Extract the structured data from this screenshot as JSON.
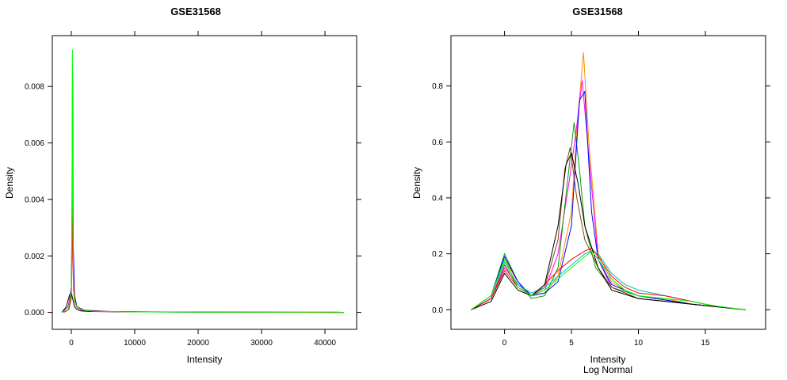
{
  "colors": [
    "#ff0000",
    "#00a000",
    "#0000ff",
    "#ff00ff",
    "#00c0c0",
    "#ff8c00",
    "#8b4513",
    "#000000",
    "#00ff00",
    "#a020f0",
    "#228b22",
    "#4682b4",
    "#ff1493",
    "#daa520",
    "#1e90ff"
  ],
  "chart_data": [
    {
      "type": "line",
      "title": "GSE31568",
      "xlabel": "Intensity",
      "ylabel": "Density",
      "subtitle": "",
      "xlim": [
        -3000,
        45000
      ],
      "ylim": [
        -0.0006,
        0.0098
      ],
      "xticks": [
        0,
        10000,
        20000,
        30000,
        40000
      ],
      "xtick_labels": [
        "0",
        "10000",
        "20000",
        "30000",
        "40000"
      ],
      "yticks": [
        0,
        0.002,
        0.004,
        0.006,
        0.008
      ],
      "ytick_labels": [
        "0.000",
        "0.002",
        "0.004",
        "0.006",
        "0.008"
      ],
      "grid": false,
      "series": [
        {
          "color": "#ff00ff",
          "x": [
            -1500,
            -500,
            0,
            100,
            180,
            250,
            350,
            500,
            800,
            1500,
            3000,
            8000,
            20000,
            30000,
            42000,
            43000
          ],
          "y": [
            0,
            0.0002,
            0.0009,
            0.004,
            0.0088,
            0.0035,
            0.0009,
            0.0004,
            0.0002,
            8e-05,
            4e-05,
            2e-05,
            1e-05,
            1e-05,
            1e-05,
            0
          ]
        },
        {
          "color": "#000000",
          "x": [
            -1500,
            -800,
            -300,
            0,
            200,
            500,
            900,
            1500,
            3000,
            8000,
            20000,
            43000
          ],
          "y": [
            0,
            0.0002,
            0.0006,
            0.0007,
            0.0005,
            0.0002,
            0.0001,
            5e-05,
            3e-05,
            2e-05,
            1e-05,
            0
          ]
        },
        {
          "color": "#0000ff",
          "x": [
            -1200,
            -400,
            0,
            120,
            200,
            300,
            500,
            900,
            2000,
            6000,
            20000,
            43000
          ],
          "y": [
            0,
            0.0001,
            0.0008,
            0.003,
            0.0085,
            0.0025,
            0.0006,
            0.0002,
            8e-05,
            3e-05,
            1e-05,
            0
          ]
        },
        {
          "color": "#ff0000",
          "x": [
            -1200,
            -400,
            0,
            150,
            220,
            320,
            600,
            1000,
            2500,
            8000,
            43000
          ],
          "y": [
            0,
            0.0001,
            0.0005,
            0.002,
            0.0045,
            0.0012,
            0.0004,
            0.00015,
            6e-05,
            2e-05,
            0
          ]
        },
        {
          "color": "#00ff00",
          "x": [
            -1500,
            -500,
            0,
            100,
            170,
            240,
            330,
            500,
            900,
            1600,
            3500,
            9000,
            20000,
            30000,
            42000,
            43000
          ],
          "y": [
            0,
            0.0001,
            0.0007,
            0.0035,
            0.0093,
            0.0038,
            0.0008,
            0.0004,
            0.0002,
            9e-05,
            4e-05,
            2e-05,
            1e-05,
            1e-05,
            1e-05,
            0
          ]
        }
      ]
    },
    {
      "type": "line",
      "title": "GSE31568",
      "xlabel": "Intensity",
      "ylabel": "Density",
      "subtitle": "Log Normal",
      "xlim": [
        -4,
        19.5
      ],
      "ylim": [
        -0.07,
        0.98
      ],
      "xticks": [
        0,
        5,
        10,
        15
      ],
      "xtick_labels": [
        "0",
        "5",
        "10",
        "15"
      ],
      "yticks": [
        0,
        0.2,
        0.4,
        0.6,
        0.8
      ],
      "ytick_labels": [
        "0.0",
        "0.2",
        "0.4",
        "0.6",
        "0.8"
      ],
      "grid": false,
      "series": [
        {
          "color": "#ff8c00",
          "x": [
            -2.5,
            -1,
            0,
            1,
            2,
            3,
            4,
            5,
            5.5,
            5.9,
            6.3,
            7,
            8,
            9,
            10,
            12,
            14,
            16,
            18
          ],
          "y": [
            0,
            0.05,
            0.18,
            0.1,
            0.05,
            0.06,
            0.12,
            0.35,
            0.7,
            0.92,
            0.6,
            0.2,
            0.1,
            0.07,
            0.05,
            0.04,
            0.02,
            0.01,
            0
          ]
        },
        {
          "color": "#ff00ff",
          "x": [
            -2.5,
            -1,
            0,
            1,
            2,
            3,
            4,
            4.8,
            5.3,
            5.8,
            6.3,
            7,
            8,
            10,
            14,
            18
          ],
          "y": [
            0,
            0.04,
            0.15,
            0.09,
            0.05,
            0.07,
            0.2,
            0.45,
            0.62,
            0.82,
            0.55,
            0.18,
            0.08,
            0.04,
            0.02,
            0
          ]
        },
        {
          "color": "#00a000",
          "x": [
            -2.5,
            -1,
            0,
            1,
            2,
            3,
            4,
            4.8,
            5.2,
            5.6,
            6,
            6.8,
            8,
            10,
            14,
            18
          ],
          "y": [
            0,
            0.05,
            0.2,
            0.1,
            0.04,
            0.05,
            0.15,
            0.5,
            0.67,
            0.5,
            0.3,
            0.15,
            0.08,
            0.05,
            0.02,
            0
          ]
        },
        {
          "color": "#0000ff",
          "x": [
            -2.5,
            -1,
            0,
            1,
            2,
            3,
            4,
            5,
            5.6,
            6,
            6.5,
            7,
            8,
            10,
            14,
            18
          ],
          "y": [
            0,
            0.05,
            0.19,
            0.1,
            0.05,
            0.06,
            0.1,
            0.3,
            0.75,
            0.78,
            0.35,
            0.18,
            0.09,
            0.05,
            0.02,
            0
          ]
        },
        {
          "color": "#8b4513",
          "x": [
            -2.5,
            -1,
            0,
            1,
            2,
            3,
            4,
            4.5,
            4.9,
            5.4,
            6,
            7,
            8,
            10,
            14,
            18
          ],
          "y": [
            0,
            0.04,
            0.16,
            0.08,
            0.05,
            0.08,
            0.25,
            0.5,
            0.58,
            0.4,
            0.25,
            0.15,
            0.08,
            0.04,
            0.02,
            0
          ]
        },
        {
          "color": "#00c0c0",
          "x": [
            -2.5,
            -1,
            0,
            1,
            2,
            3,
            4,
            5,
            6,
            6.5,
            7,
            8,
            9,
            10,
            12,
            14,
            16,
            18
          ],
          "y": [
            0,
            0.05,
            0.17,
            0.09,
            0.06,
            0.08,
            0.12,
            0.16,
            0.2,
            0.21,
            0.2,
            0.13,
            0.09,
            0.07,
            0.05,
            0.03,
            0.01,
            0
          ]
        },
        {
          "color": "#ff0000",
          "x": [
            -2.5,
            -1,
            0,
            1,
            2,
            3,
            4,
            5,
            6,
            6.5,
            7,
            8,
            9,
            10,
            12,
            14,
            16,
            18
          ],
          "y": [
            0,
            0.04,
            0.14,
            0.08,
            0.05,
            0.09,
            0.14,
            0.18,
            0.21,
            0.22,
            0.19,
            0.12,
            0.08,
            0.06,
            0.05,
            0.03,
            0.01,
            0
          ]
        },
        {
          "color": "#000000",
          "x": [
            -2.5,
            -1,
            0,
            1,
            2,
            3,
            4,
            4.6,
            5,
            5.5,
            6,
            7,
            8,
            10,
            14,
            18
          ],
          "y": [
            0,
            0.03,
            0.13,
            0.07,
            0.05,
            0.09,
            0.3,
            0.52,
            0.56,
            0.45,
            0.3,
            0.15,
            0.07,
            0.04,
            0.02,
            0
          ]
        },
        {
          "color": "#00ff00",
          "x": [
            -2.5,
            -1,
            0,
            1,
            2,
            3,
            4,
            5,
            6,
            6.5,
            7,
            8,
            9,
            10,
            11,
            12,
            13,
            14,
            15,
            16,
            17,
            18
          ],
          "y": [
            0,
            0.05,
            0.18,
            0.08,
            0.05,
            0.07,
            0.11,
            0.15,
            0.19,
            0.21,
            0.18,
            0.11,
            0.07,
            0.05,
            0.045,
            0.04,
            0.035,
            0.03,
            0.02,
            0.012,
            0.006,
            0
          ]
        }
      ]
    }
  ]
}
